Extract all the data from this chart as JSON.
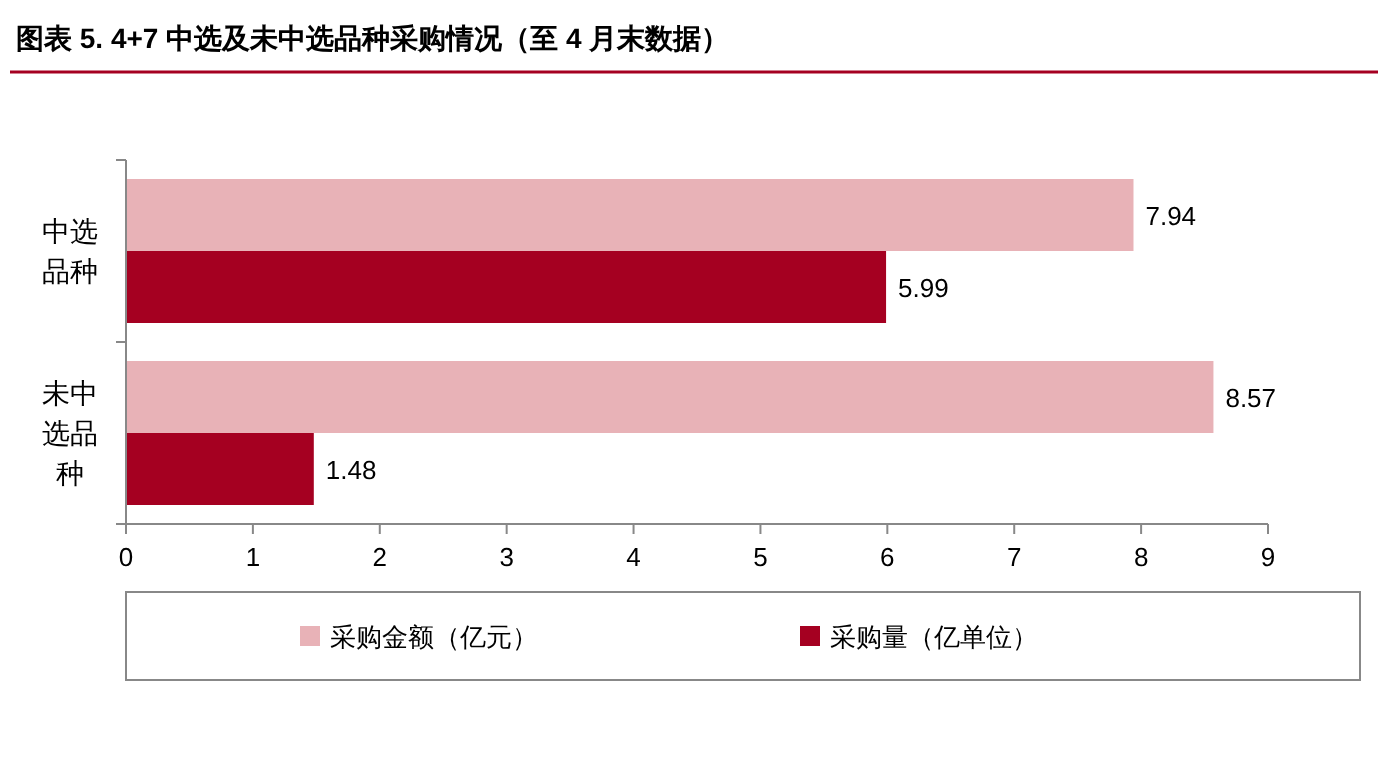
{
  "chart_data": {
    "type": "bar",
    "orientation": "horizontal",
    "title": "图表 5. 4+7 中选及未中选品种采购情况（至 4 月末数据）",
    "categories": [
      "中选品种",
      "未中选品种"
    ],
    "series": [
      {
        "name": "采购金额（亿元）",
        "color": "#e8b2b7",
        "values": [
          7.94,
          8.57
        ]
      },
      {
        "name": "采购量（亿单位）",
        "color": "#a50021",
        "values": [
          5.99,
          1.48
        ]
      }
    ],
    "xlim": [
      0,
      9
    ],
    "xticks": [
      0,
      1,
      2,
      3,
      4,
      5,
      6,
      7,
      8,
      9
    ],
    "data_labels": true,
    "legend": "bottom",
    "grid": false
  }
}
